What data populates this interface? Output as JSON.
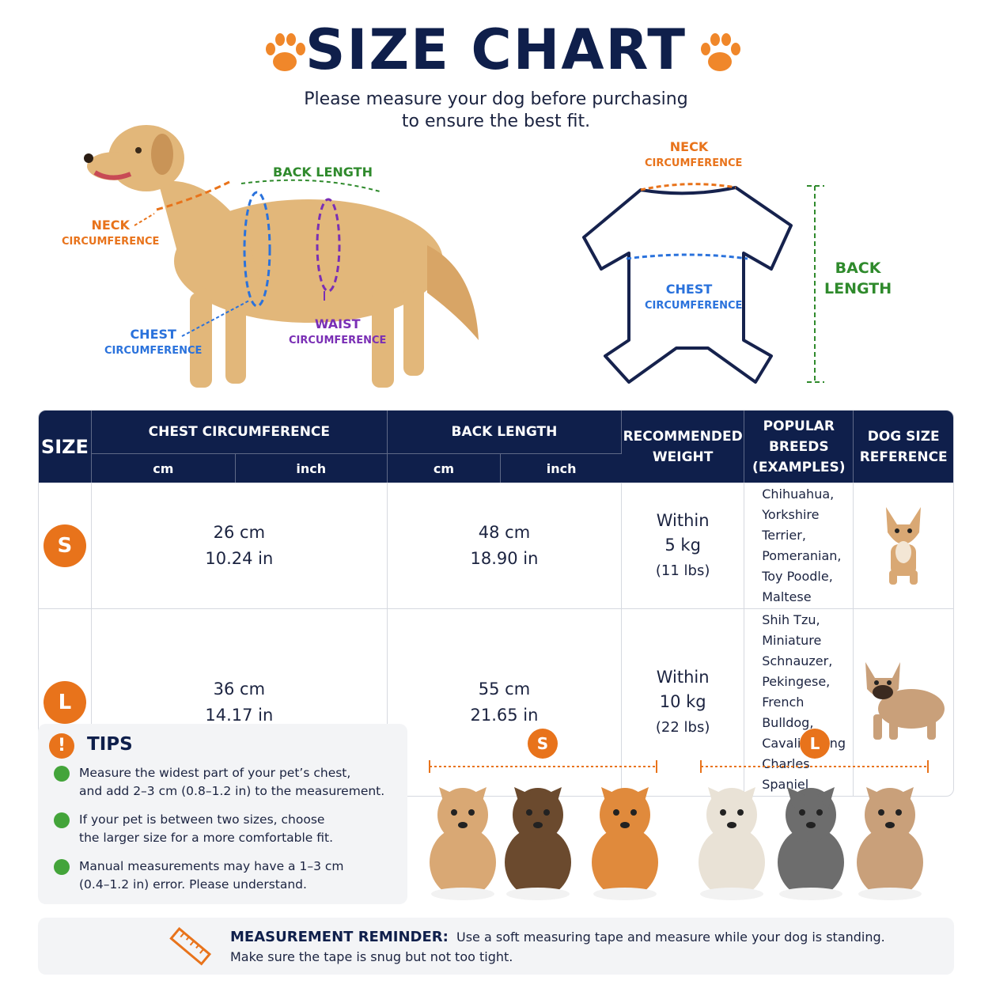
{
  "header": {
    "title": "SIZE CHART",
    "subtitle": [
      "Please measure your dog before purchasing",
      "to ensure the best fit."
    ]
  },
  "dog_diagram": {
    "back_length": "BACK LENGTH",
    "neck": [
      "NECK",
      "CIRCUMFERENCE"
    ],
    "chest": [
      "CHEST",
      "CIRCUMFERENCE"
    ],
    "waist": [
      "WAIST",
      "CIRCUMFERENCE"
    ]
  },
  "garment_diagram": {
    "neck": [
      "NECK",
      "CIRCUMFERENCE"
    ],
    "chest": [
      "CHEST",
      "CIRCUMFERENCE"
    ],
    "back_length": [
      "BACK",
      "LENGTH"
    ]
  },
  "table": {
    "headers": [
      "SIZE",
      "CHEST CIRCUMFERENCE",
      "BACK LENGTH",
      [
        "RECOMMENDED",
        "WEIGHT"
      ],
      [
        "POPULAR BREEDS",
        "(EXAMPLES)"
      ],
      [
        "DOG SIZE",
        "REFERENCE"
      ]
    ],
    "subheaders": [
      "cm",
      "inch",
      "cm",
      "inch"
    ],
    "rows": [
      {
        "size": "S",
        "chest": [
          "26 cm",
          "10.24 in"
        ],
        "back": [
          "48 cm",
          "18.90 in"
        ],
        "weight": [
          "Within",
          "5 kg",
          "(11 lbs)"
        ],
        "breeds": [
          "Chihuahua, Yorkshire Terrier,",
          "Pomeranian, Toy Poodle,",
          "Maltese"
        ]
      },
      {
        "size": "L",
        "chest": [
          "36 cm",
          "14.17 in"
        ],
        "back": [
          "55 cm",
          "21.65 in"
        ],
        "weight": [
          "Within",
          "10 kg",
          "(22 lbs)"
        ],
        "breeds": [
          "Shih Tzu, Miniature Schnauzer,",
          "Pekingese, French Bulldog,",
          "Cavalier King Charles Spaniel"
        ]
      }
    ]
  },
  "tips": {
    "title": "TIPS",
    "items": [
      [
        "Measure the widest part of your pet’s chest,",
        "and add 2–3 cm (0.8–1.2 in) to the measurement."
      ],
      [
        "If your pet is between two sizes, choose",
        "the larger size for a more comfortable fit."
      ],
      [
        "Manual measurements may have a 1–3 cm",
        "(0.4–1.2 in) error. Please understand."
      ]
    ]
  },
  "size_groups": [
    "S",
    "L"
  ],
  "reminder": {
    "label": "MEASUREMENT REMINDER:",
    "text": [
      "Use a soft measuring tape and measure while your dog is standing.",
      "Make sure the tape is snug but not too tight."
    ]
  }
}
